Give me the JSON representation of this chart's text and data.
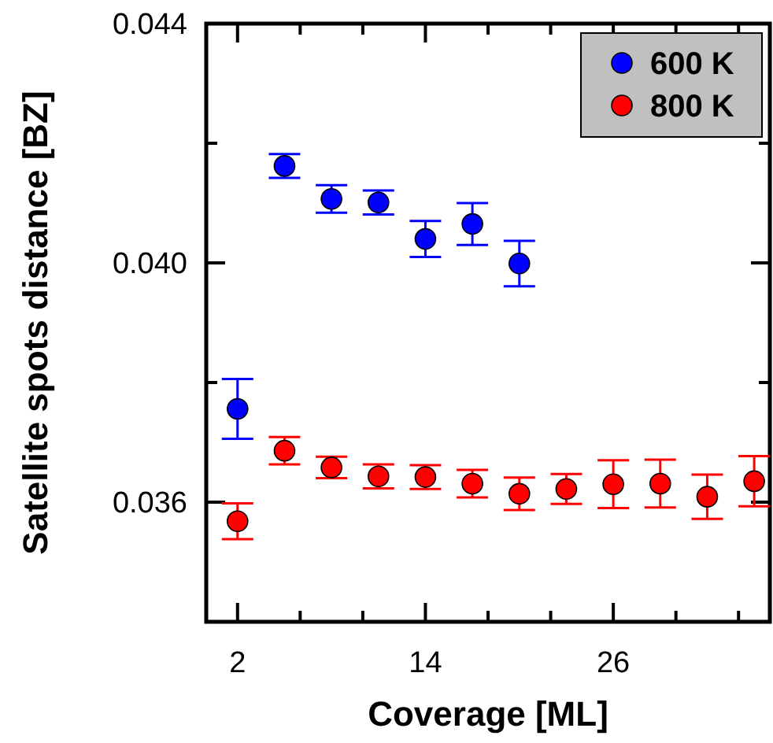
{
  "chart_data": {
    "type": "scatter",
    "xlabel": "Coverage [ML]",
    "ylabel": "Satellite spots distance [BZ]",
    "xlim": [
      0,
      36
    ],
    "xticks": [
      {
        "value": 2,
        "label": "2"
      },
      {
        "value": 6,
        "label": null
      },
      {
        "value": 10,
        "label": null
      },
      14,
      {
        "value": 18,
        "label": null
      },
      {
        "value": 22,
        "label": null
      },
      26,
      {
        "value": 30,
        "label": null
      },
      {
        "value": 34,
        "label": null
      }
    ],
    "ylim": [
      0.034,
      0.044
    ],
    "yticks": [
      0.036,
      {
        "value": 0.038,
        "label": null
      },
      {
        "value": 0.04,
        "label": "0.040"
      },
      {
        "value": 0.042,
        "label": null
      },
      0.044
    ],
    "marker": "circle",
    "legend": "top right",
    "grid": false,
    "series": [
      {
        "name": "600 K",
        "color": "#0000ff",
        "x": [
          2,
          5,
          8,
          11,
          14,
          17,
          20
        ],
        "values": [
          0.03756,
          0.04162,
          0.04107,
          0.04101,
          0.0404,
          0.04065,
          0.03999
        ],
        "errors": [
          0.0005,
          0.0002,
          0.00023,
          0.0002,
          0.0003,
          0.00035,
          0.00038
        ]
      },
      {
        "name": "800 K",
        "color": "#ff0000",
        "x": [
          2,
          5,
          8,
          11,
          14,
          17,
          20,
          23,
          26,
          29,
          32,
          35
        ],
        "values": [
          0.03568,
          0.03686,
          0.03658,
          0.03643,
          0.03642,
          0.03631,
          0.03614,
          0.03622,
          0.0363,
          0.03631,
          0.03609,
          0.03635
        ],
        "errors": [
          0.0003,
          0.00023,
          0.00018,
          0.0002,
          0.0002,
          0.00023,
          0.00027,
          0.00025,
          0.0004,
          0.0004,
          0.00037,
          0.00042
        ]
      }
    ]
  }
}
